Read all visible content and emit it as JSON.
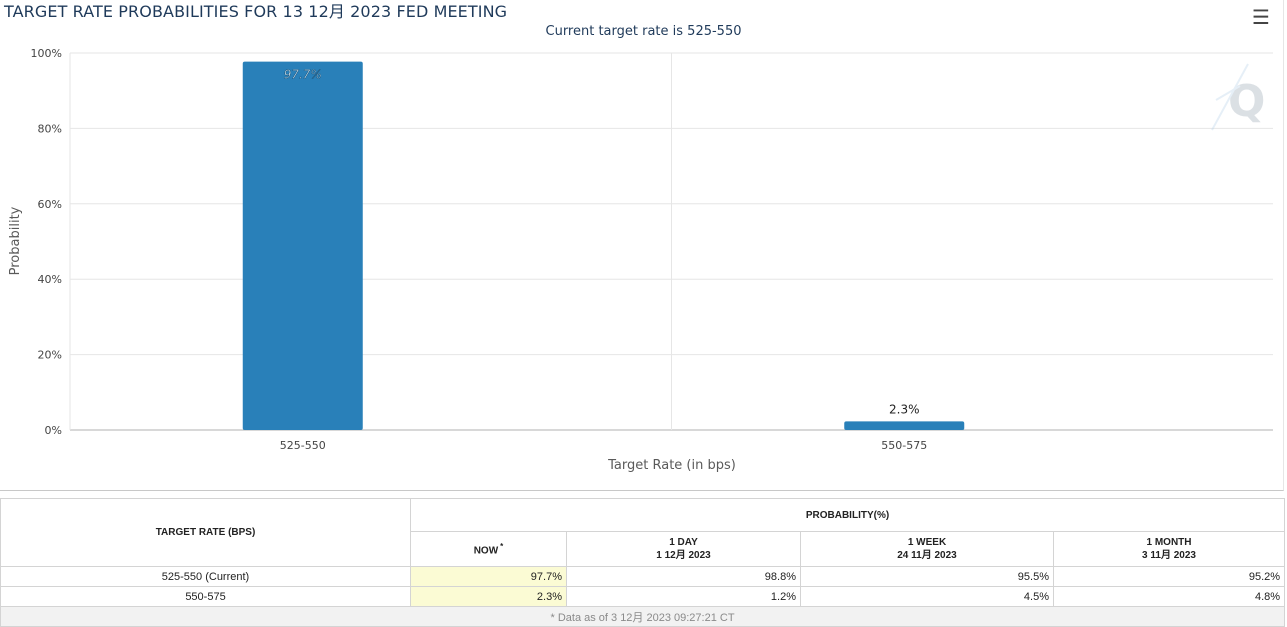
{
  "header": {
    "title": "TARGET RATE PROBABILITIES FOR 13 12月 2023 FED MEETING",
    "subtitle": "Current target rate is 525-550",
    "menu_icon": "hamburger-menu-icon",
    "watermark_icon": "q-logo-icon"
  },
  "colors": {
    "bar": "#2980b9",
    "grid": "#e6e6e6",
    "now_highlight": "#fbfbd4",
    "title": "#1f3a5a"
  },
  "chart_data": {
    "type": "bar",
    "title": "TARGET RATE PROBABILITIES FOR 13 12月 2023 FED MEETING",
    "subtitle": "Current target rate is 525-550",
    "categories": [
      "525-550",
      "550-575"
    ],
    "values": [
      97.7,
      2.3
    ],
    "data_labels": [
      "97.7%",
      "2.3%"
    ],
    "xlabel": "Target Rate (in bps)",
    "ylabel": "Probability",
    "ylim": [
      0,
      100
    ],
    "yticks": [
      0,
      20,
      40,
      60,
      80,
      100
    ],
    "ytick_labels": [
      "0%",
      "20%",
      "40%",
      "60%",
      "80%",
      "100%"
    ],
    "grid": true,
    "legend": "none"
  },
  "table": {
    "col_target": "TARGET RATE (BPS)",
    "col_prob": "PROBABILITY(%)",
    "sub_headers": [
      {
        "line1": "NOW",
        "line2": ""
      },
      {
        "line1": "1 DAY",
        "line2": "1 12月 2023"
      },
      {
        "line1": "1 WEEK",
        "line2": "24 11月 2023"
      },
      {
        "line1": "1 MONTH",
        "line2": "3 11月 2023"
      }
    ],
    "now_marker": "*",
    "rows": [
      {
        "rate": "525-550 (Current)",
        "now": "97.7%",
        "day": "98.8%",
        "week": "95.5%",
        "month": "95.2%"
      },
      {
        "rate": "550-575",
        "now": "2.3%",
        "day": "1.2%",
        "week": "4.5%",
        "month": "4.8%"
      }
    ],
    "footnote": "* Data as of 3 12月 2023 09:27:21 CT"
  }
}
